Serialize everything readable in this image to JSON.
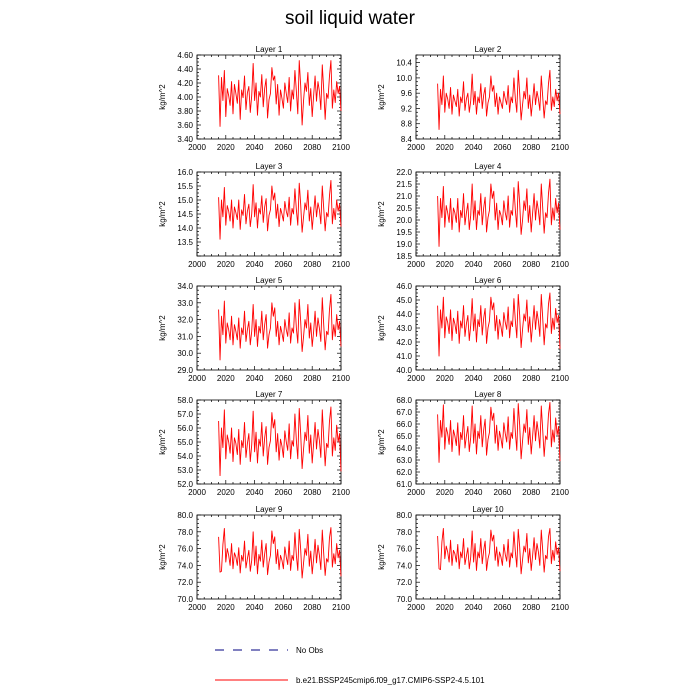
{
  "title": "soil liquid water",
  "legend": {
    "obs_label": "No Obs",
    "model_label": "b.e21.BSSP245cmip6.f09_g17.CMIP6-SSP2-4.5.101",
    "model_color": "#ff0000",
    "obs_color": "#000080"
  },
  "chart_data": [
    {
      "type": "line",
      "title": "Layer 1",
      "ylabel": "kg/m^2",
      "xlim": [
        2000,
        2100
      ],
      "ylim": [
        3.4,
        4.6
      ],
      "xticks": [
        "2000",
        "2020",
        "2040",
        "2060",
        "2080",
        "2100"
      ],
      "yticks": [
        "3.40",
        "3.60",
        "3.80",
        "4.00",
        "4.20",
        "4.40",
        "4.60"
      ],
      "x_start": 2015,
      "x_end": 2100,
      "color": "#ff0000",
      "values": [
        4.31,
        3.58,
        4.28,
        3.95,
        4.38,
        3.72,
        4.12,
        4.02,
        3.88,
        4.22,
        3.76,
        4.18,
        4.05,
        3.91,
        4.24,
        3.68,
        4.1,
        3.99,
        4.3,
        3.82,
        4.06,
        4.15,
        3.78,
        4.02,
        4.48,
        3.95,
        4.2,
        3.74,
        4.08,
        4.0,
        4.32,
        3.86,
        4.12,
        4.26,
        3.7,
        3.96,
        4.05,
        4.42,
        4.24,
        4.3,
        3.9,
        4.18,
        3.74,
        4.1,
        3.98,
        3.84,
        4.2,
        4.05,
        3.92,
        4.28,
        3.8,
        4.1,
        3.97,
        4.38,
        4.08,
        3.76,
        4.52,
        4.16,
        3.6,
        3.95,
        4.2,
        4.08,
        4.35,
        3.88,
        4.12,
        3.72,
        4.02,
        4.3,
        3.94,
        4.22,
        4.08,
        3.82,
        4.46,
        4.1,
        3.68,
        4.05,
        3.98,
        4.3,
        4.52,
        3.84,
        4.1,
        3.92,
        4.22,
        4.05,
        4.15,
        3.8
      ]
    },
    {
      "type": "line",
      "title": "Layer 2",
      "ylabel": "kg/m^2",
      "xlim": [
        2000,
        2100
      ],
      "ylim": [
        8.4,
        10.6
      ],
      "xticks": [
        "2000",
        "2020",
        "2040",
        "2060",
        "2080",
        "2100"
      ],
      "yticks": [
        "8.4",
        "8.8",
        "9.2",
        "9.6",
        "10.0",
        "10.4"
      ],
      "x_start": 2015,
      "x_end": 2100,
      "color": "#ff0000",
      "values": [
        9.85,
        8.65,
        9.7,
        9.3,
        10.05,
        9.1,
        9.6,
        9.45,
        9.2,
        9.75,
        9.05,
        9.55,
        9.4,
        9.25,
        9.7,
        9.0,
        9.5,
        9.35,
        9.9,
        9.15,
        9.45,
        9.6,
        9.1,
        9.4,
        10.1,
        9.3,
        9.65,
        9.05,
        9.5,
        9.35,
        9.85,
        9.2,
        9.55,
        9.75,
        9.0,
        9.35,
        9.5,
        10.05,
        9.65,
        9.8,
        9.25,
        9.6,
        9.05,
        9.5,
        9.35,
        9.2,
        9.65,
        9.45,
        9.3,
        9.8,
        9.1,
        9.5,
        9.35,
        10.0,
        9.45,
        9.1,
        10.2,
        9.6,
        8.9,
        9.3,
        9.65,
        9.45,
        10.0,
        9.2,
        9.55,
        9.0,
        9.4,
        9.85,
        9.3,
        9.65,
        9.45,
        9.15,
        10.05,
        9.5,
        8.95,
        9.4,
        9.3,
        9.85,
        10.2,
        9.15,
        9.5,
        9.25,
        9.7,
        9.4,
        9.6,
        9.05
      ]
    },
    {
      "type": "line",
      "title": "Layer 3",
      "ylabel": "kg/m^2",
      "xlim": [
        2000,
        2100
      ],
      "ylim": [
        13.0,
        16.0
      ],
      "xticks": [
        "2000",
        "2020",
        "2040",
        "2060",
        "2080",
        "2100"
      ],
      "yticks": [
        "13.5",
        "14.0",
        "14.5",
        "15.0",
        "15.5",
        "16.0"
      ],
      "x_start": 2015,
      "x_end": 2100,
      "color": "#ff0000",
      "values": [
        15.1,
        13.6,
        15.0,
        14.4,
        15.45,
        14.1,
        14.8,
        14.6,
        14.25,
        15.0,
        14.0,
        14.75,
        14.55,
        14.3,
        15.0,
        13.95,
        14.65,
        14.45,
        15.2,
        14.15,
        14.6,
        14.85,
        14.05,
        14.5,
        15.55,
        14.4,
        14.9,
        14.0,
        14.7,
        14.5,
        15.15,
        14.2,
        14.75,
        15.05,
        13.9,
        14.45,
        14.65,
        15.5,
        15.0,
        15.25,
        14.35,
        14.85,
        14.05,
        14.7,
        14.5,
        14.25,
        14.95,
        14.6,
        14.4,
        15.1,
        14.1,
        14.7,
        14.5,
        15.4,
        14.65,
        14.1,
        15.6,
        14.85,
        13.85,
        14.4,
        14.9,
        14.65,
        15.35,
        14.25,
        14.75,
        13.95,
        14.55,
        15.15,
        14.4,
        14.9,
        14.65,
        14.15,
        15.5,
        14.7,
        13.9,
        14.55,
        14.4,
        15.15,
        15.7,
        14.15,
        14.7,
        14.3,
        15.0,
        14.6,
        14.85,
        14.05
      ]
    },
    {
      "type": "line",
      "title": "Layer 4",
      "ylabel": "kg/m^2",
      "xlim": [
        2000,
        2100
      ],
      "ylim": [
        18.5,
        22.0
      ],
      "xticks": [
        "2000",
        "2020",
        "2040",
        "2060",
        "2080",
        "2100"
      ],
      "yticks": [
        "18.5",
        "19.0",
        "19.5",
        "20.0",
        "20.5",
        "21.0",
        "21.5",
        "22.0"
      ],
      "x_start": 2015,
      "x_end": 2100,
      "color": "#ff0000",
      "values": [
        21.0,
        18.9,
        20.9,
        20.1,
        21.4,
        19.7,
        20.6,
        20.3,
        19.9,
        20.9,
        19.6,
        20.5,
        20.3,
        19.9,
        20.9,
        19.5,
        20.4,
        20.1,
        21.1,
        19.8,
        20.3,
        20.7,
        19.6,
        20.2,
        21.5,
        20.0,
        20.8,
        19.6,
        20.4,
        20.2,
        21.1,
        19.8,
        20.5,
        20.95,
        19.5,
        20.1,
        20.4,
        21.5,
        20.9,
        21.2,
        20.0,
        20.7,
        19.6,
        20.4,
        20.2,
        19.8,
        20.8,
        20.3,
        20.0,
        21.0,
        19.7,
        20.4,
        20.2,
        21.35,
        20.4,
        19.7,
        21.6,
        20.7,
        19.4,
        20.0,
        20.8,
        20.4,
        21.3,
        19.9,
        20.6,
        19.5,
        20.3,
        21.1,
        20.0,
        20.8,
        20.4,
        19.8,
        21.5,
        20.5,
        19.45,
        20.3,
        20.1,
        21.1,
        21.7,
        19.8,
        20.5,
        20.0,
        20.9,
        20.3,
        20.7,
        19.6
      ]
    },
    {
      "type": "line",
      "title": "Layer 5",
      "ylabel": "kg/m^2",
      "xlim": [
        2000,
        2100
      ],
      "ylim": [
        29.0,
        34.0
      ],
      "xticks": [
        "2000",
        "2020",
        "2040",
        "2060",
        "2080",
        "2100"
      ],
      "yticks": [
        "29.0",
        "30.0",
        "31.0",
        "32.0",
        "33.0",
        "34.0"
      ],
      "x_start": 2015,
      "x_end": 2100,
      "color": "#ff0000",
      "values": [
        32.6,
        29.6,
        32.2,
        31.1,
        33.1,
        30.6,
        31.8,
        31.4,
        30.8,
        32.2,
        30.5,
        31.7,
        31.3,
        30.8,
        32.1,
        30.3,
        31.5,
        31.1,
        32.5,
        30.7,
        31.4,
        31.9,
        30.5,
        31.3,
        32.9,
        31.0,
        32.0,
        30.4,
        31.6,
        31.2,
        32.5,
        30.8,
        31.7,
        32.3,
        30.3,
        31.1,
        31.5,
        33.0,
        32.2,
        32.7,
        31.0,
        31.9,
        30.5,
        31.6,
        31.2,
        30.7,
        32.0,
        31.4,
        31.0,
        32.4,
        30.6,
        31.5,
        31.2,
        33.0,
        31.5,
        30.6,
        33.2,
        31.9,
        30.1,
        31.0,
        32.0,
        31.5,
        32.9,
        30.9,
        31.8,
        30.4,
        31.3,
        32.5,
        31.0,
        32.1,
        31.5,
        30.7,
        33.3,
        31.7,
        30.2,
        31.3,
        31.1,
        32.6,
        33.5,
        30.8,
        31.7,
        31.0,
        32.3,
        31.4,
        31.9,
        30.4
      ]
    },
    {
      "type": "line",
      "title": "Layer 6",
      "ylabel": "kg/m^2",
      "xlim": [
        2000,
        2100
      ],
      "ylim": [
        40.0,
        46.0
      ],
      "xticks": [
        "2000",
        "2020",
        "2040",
        "2060",
        "2080",
        "2100"
      ],
      "yticks": [
        "40.0",
        "41.0",
        "42.0",
        "43.0",
        "44.0",
        "45.0",
        "46.0"
      ],
      "x_start": 2015,
      "x_end": 2100,
      "color": "#ff0000",
      "values": [
        44.6,
        41.0,
        44.3,
        43.0,
        45.2,
        42.3,
        43.8,
        43.4,
        42.6,
        44.3,
        42.1,
        43.7,
        43.3,
        42.6,
        44.2,
        41.9,
        43.5,
        43.0,
        44.6,
        42.4,
        43.3,
        43.9,
        42.1,
        43.2,
        45.1,
        42.8,
        44.0,
        42.0,
        43.6,
        43.1,
        44.6,
        42.5,
        43.7,
        44.4,
        41.9,
        43.0,
        43.5,
        45.2,
        44.3,
        44.8,
        42.8,
        43.9,
        42.2,
        43.6,
        43.1,
        42.4,
        44.1,
        43.4,
        42.9,
        44.5,
        42.3,
        43.5,
        43.1,
        45.1,
        43.5,
        42.3,
        45.4,
        43.9,
        41.6,
        42.9,
        44.0,
        43.5,
        45.0,
        42.7,
        43.8,
        42.0,
        43.3,
        44.6,
        42.9,
        44.2,
        43.5,
        42.4,
        45.4,
        43.7,
        41.8,
        43.3,
        43.0,
        44.7,
        45.5,
        42.6,
        43.7,
        42.9,
        44.4,
        43.4,
        43.9,
        41.5
      ]
    },
    {
      "type": "line",
      "title": "Layer 7",
      "ylabel": "kg/m^2",
      "xlim": [
        2000,
        2100
      ],
      "ylim": [
        52.0,
        58.0
      ],
      "xticks": [
        "2000",
        "2020",
        "2040",
        "2060",
        "2080",
        "2100"
      ],
      "yticks": [
        "52.0",
        "53.0",
        "54.0",
        "55.0",
        "56.0",
        "57.0",
        "58.0"
      ],
      "x_start": 2015,
      "x_end": 2100,
      "color": "#ff0000",
      "values": [
        56.5,
        52.6,
        56.0,
        54.6,
        57.3,
        53.8,
        55.5,
        55.0,
        54.2,
        56.0,
        53.6,
        55.3,
        54.9,
        54.1,
        55.9,
        53.4,
        55.1,
        54.6,
        56.4,
        53.9,
        54.9,
        55.6,
        53.6,
        54.8,
        57.2,
        54.3,
        55.7,
        53.5,
        55.2,
        54.7,
        56.4,
        54.0,
        55.3,
        56.1,
        53.4,
        54.6,
        55.1,
        57.1,
        56.0,
        56.6,
        54.3,
        55.6,
        53.7,
        55.2,
        54.7,
        53.9,
        55.8,
        55.0,
        54.4,
        56.3,
        53.8,
        55.1,
        54.7,
        57.0,
        55.1,
        53.8,
        57.4,
        55.6,
        53.1,
        54.5,
        55.7,
        55.1,
        56.9,
        54.2,
        55.5,
        53.5,
        54.9,
        56.4,
        54.5,
        55.9,
        55.1,
        53.9,
        57.3,
        55.3,
        53.3,
        54.9,
        54.6,
        56.5,
        57.5,
        54.0,
        55.3,
        54.4,
        56.2,
        55.0,
        55.6,
        52.9
      ]
    },
    {
      "type": "line",
      "title": "Layer 8",
      "ylabel": "kg/m^2",
      "xlim": [
        2000,
        2100
      ],
      "ylim": [
        61.0,
        68.0
      ],
      "xticks": [
        "2000",
        "2020",
        "2040",
        "2060",
        "2080",
        "2100"
      ],
      "yticks": [
        "61.0",
        "62.0",
        "63.0",
        "64.0",
        "65.0",
        "66.0",
        "67.0",
        "68.0"
      ],
      "x_start": 2015,
      "x_end": 2100,
      "color": "#ff0000",
      "values": [
        66.8,
        62.8,
        66.3,
        64.9,
        67.6,
        63.9,
        65.7,
        65.2,
        64.3,
        66.3,
        63.7,
        65.5,
        65.0,
        64.2,
        66.1,
        63.4,
        65.3,
        64.7,
        66.7,
        64.0,
        65.0,
        65.8,
        63.7,
        64.9,
        67.5,
        64.4,
        66.0,
        63.5,
        65.4,
        64.8,
        66.7,
        64.1,
        65.5,
        66.4,
        63.4,
        64.7,
        65.3,
        67.4,
        66.3,
        66.9,
        64.4,
        65.9,
        63.8,
        65.4,
        64.8,
        64.0,
        66.1,
        65.2,
        64.5,
        66.6,
        63.9,
        65.3,
        64.8,
        67.3,
        65.3,
        63.8,
        67.7,
        65.9,
        63.1,
        64.6,
        66.0,
        65.3,
        67.2,
        64.3,
        65.7,
        63.5,
        65.0,
        66.7,
        64.6,
        66.2,
        65.3,
        64.0,
        67.5,
        65.5,
        63.3,
        65.0,
        64.7,
        66.8,
        67.8,
        64.1,
        65.5,
        64.5,
        66.5,
        65.1,
        65.8,
        62.9
      ]
    },
    {
      "type": "line",
      "title": "Layer 9",
      "ylabel": "kg/m^2",
      "xlim": [
        2000,
        2100
      ],
      "ylim": [
        70.0,
        80.0
      ],
      "xticks": [
        "2000",
        "2020",
        "2040",
        "2060",
        "2080",
        "2100"
      ],
      "yticks": [
        "70.0",
        "72.0",
        "74.0",
        "76.0",
        "78.0",
        "80.0"
      ],
      "x_start": 2015,
      "x_end": 2100,
      "color": "#ff0000",
      "values": [
        77.4,
        73.2,
        73.3,
        76.5,
        78.4,
        74.4,
        76.0,
        75.2,
        74.0,
        76.6,
        73.6,
        75.5,
        75.0,
        74.0,
        76.1,
        73.1,
        75.2,
        74.5,
        76.9,
        73.7,
        74.8,
        75.8,
        73.3,
        74.6,
        78.0,
        74.0,
        76.3,
        73.0,
        75.3,
        74.5,
        77.0,
        73.8,
        75.4,
        76.6,
        72.9,
        74.4,
        75.2,
        78.1,
        76.6,
        77.4,
        74.2,
        75.9,
        73.5,
        75.2,
        74.6,
        73.6,
        76.2,
        75.0,
        74.1,
        76.9,
        73.4,
        75.2,
        74.6,
        77.9,
        75.2,
        73.4,
        78.3,
        75.9,
        72.5,
        74.3,
        76.0,
        75.2,
        77.7,
        73.9,
        75.7,
        73.0,
        74.8,
        77.1,
        74.3,
        76.4,
        75.2,
        73.5,
        78.2,
        75.4,
        72.8,
        74.8,
        74.4,
        77.3,
        78.5,
        73.8,
        75.4,
        74.2,
        76.6,
        74.9,
        75.8,
        72.7
      ]
    },
    {
      "type": "line",
      "title": "Layer 10",
      "ylabel": "kg/m^2",
      "xlim": [
        2000,
        2100
      ],
      "ylim": [
        70.0,
        80.0
      ],
      "xticks": [
        "2000",
        "2020",
        "2040",
        "2060",
        "2080",
        "2100"
      ],
      "yticks": [
        "70.0",
        "72.0",
        "74.0",
        "76.0",
        "78.0",
        "80.0"
      ],
      "x_start": 2015,
      "x_end": 2100,
      "color": "#ff0000",
      "values": [
        77.5,
        73.6,
        73.5,
        76.8,
        78.4,
        74.8,
        76.3,
        75.6,
        74.4,
        77.0,
        74.0,
        75.8,
        75.4,
        74.4,
        76.5,
        73.6,
        75.6,
        74.9,
        77.2,
        74.1,
        75.1,
        76.1,
        73.6,
        75.0,
        78.1,
        74.4,
        76.6,
        73.4,
        75.6,
        74.9,
        77.2,
        74.2,
        75.8,
        76.9,
        73.4,
        74.8,
        75.5,
        78.2,
        76.9,
        77.6,
        74.6,
        76.2,
        73.9,
        75.6,
        75.0,
        74.0,
        76.5,
        75.3,
        74.5,
        77.1,
        73.8,
        75.5,
        74.9,
        78.0,
        75.6,
        73.8,
        78.3,
        76.2,
        73.0,
        74.7,
        76.3,
        75.6,
        77.8,
        74.3,
        76.0,
        73.4,
        75.2,
        77.3,
        74.7,
        76.6,
        75.6,
        74.0,
        78.2,
        75.8,
        73.2,
        75.2,
        74.8,
        77.4,
        78.4,
        74.2,
        75.8,
        74.6,
        76.8,
        75.3,
        76.1,
        73.3
      ]
    }
  ]
}
